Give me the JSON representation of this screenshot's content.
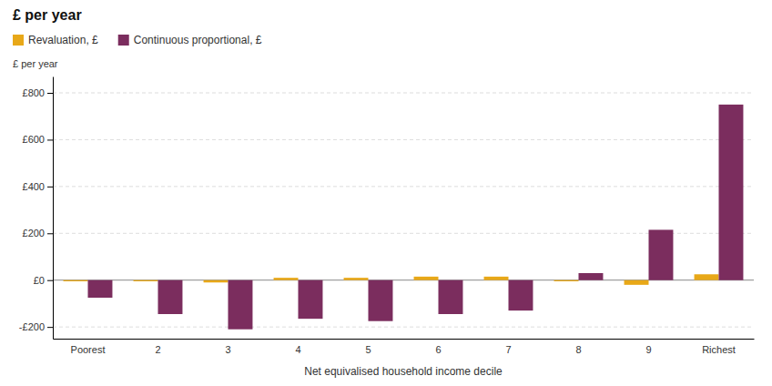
{
  "chart_data": {
    "type": "bar",
    "title": "£ per year",
    "xlabel": "Net equivalised household income decile",
    "ylabel": "£ per year",
    "categories": [
      "Poorest",
      "2",
      "3",
      "4",
      "5",
      "6",
      "7",
      "8",
      "9",
      "Richest"
    ],
    "series": [
      {
        "name": "Revaluation, £",
        "color": "#E8A818",
        "values": [
          -5,
          -5,
          -10,
          10,
          10,
          15,
          15,
          -5,
          -20,
          25
        ]
      },
      {
        "name": "Continuous proportional, £",
        "color": "#7B2D5E",
        "values": [
          -75,
          -145,
          -210,
          -165,
          -175,
          -145,
          -130,
          30,
          215,
          750
        ]
      }
    ],
    "ylim": [
      -250,
      870
    ],
    "yticks": [
      {
        "value": -200,
        "label": "-£200"
      },
      {
        "value": 0,
        "label": "£0"
      },
      {
        "value": 200,
        "label": "£200"
      },
      {
        "value": 400,
        "label": "£400"
      },
      {
        "value": 600,
        "label": "£600"
      },
      {
        "value": 800,
        "label": "£800"
      }
    ],
    "grid": true,
    "legend": "top-left"
  }
}
